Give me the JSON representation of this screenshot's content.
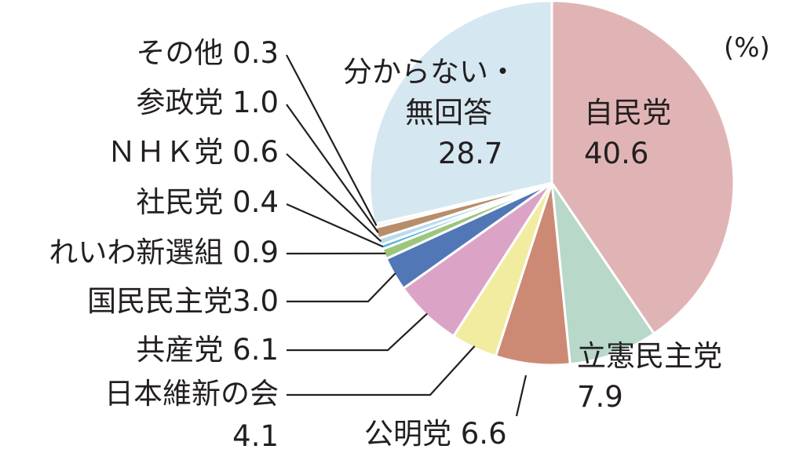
{
  "chart_data": {
    "type": "pie",
    "unit": "(%)",
    "slices": [
      {
        "label": "自民党",
        "value": 40.6,
        "color": "#e0b4b5",
        "line1": "自民党",
        "line2": "40.6"
      },
      {
        "label": "立憲民主党",
        "value": 7.9,
        "color": "#b8d8c9",
        "line1": "立憲民主党",
        "line2": "7.9"
      },
      {
        "label": "公明党",
        "value": 6.6,
        "color": "#cc8a75",
        "line1": "公明党 6.6"
      },
      {
        "label": "日本維新の会",
        "value": 4.1,
        "color": "#f1eca0",
        "line1": "日本維新の会",
        "line2": "4.1"
      },
      {
        "label": "共産党",
        "value": 6.1,
        "color": "#dba4c6",
        "line1": "共産党 6.1"
      },
      {
        "label": "国民民主党",
        "value": 3.0,
        "color": "#5277b7",
        "line1": "国民民主党3.0"
      },
      {
        "label": "れいわ新選組",
        "value": 0.9,
        "color": "#9bc77d",
        "line1": "れいわ新選組 0.9"
      },
      {
        "label": "社民党",
        "value": 0.4,
        "color": "#5bb0d6",
        "line1": "社民党 0.4"
      },
      {
        "label": "NHK党",
        "value": 0.6,
        "color": "#b8dbef",
        "line1": "ＮＨＫ党 0.6"
      },
      {
        "label": "参政党",
        "value": 1.0,
        "color": "#b88e6a",
        "line1": "参政党 1.0"
      },
      {
        "label": "その他",
        "value": 0.3,
        "color": "#f2ede4",
        "line1": "その他 0.3"
      },
      {
        "label": "分からない・無回答",
        "value": 28.7,
        "color": "#d5e7f0",
        "line1": "分からない・",
        "line2": "無回答",
        "line3": "28.7"
      }
    ]
  }
}
